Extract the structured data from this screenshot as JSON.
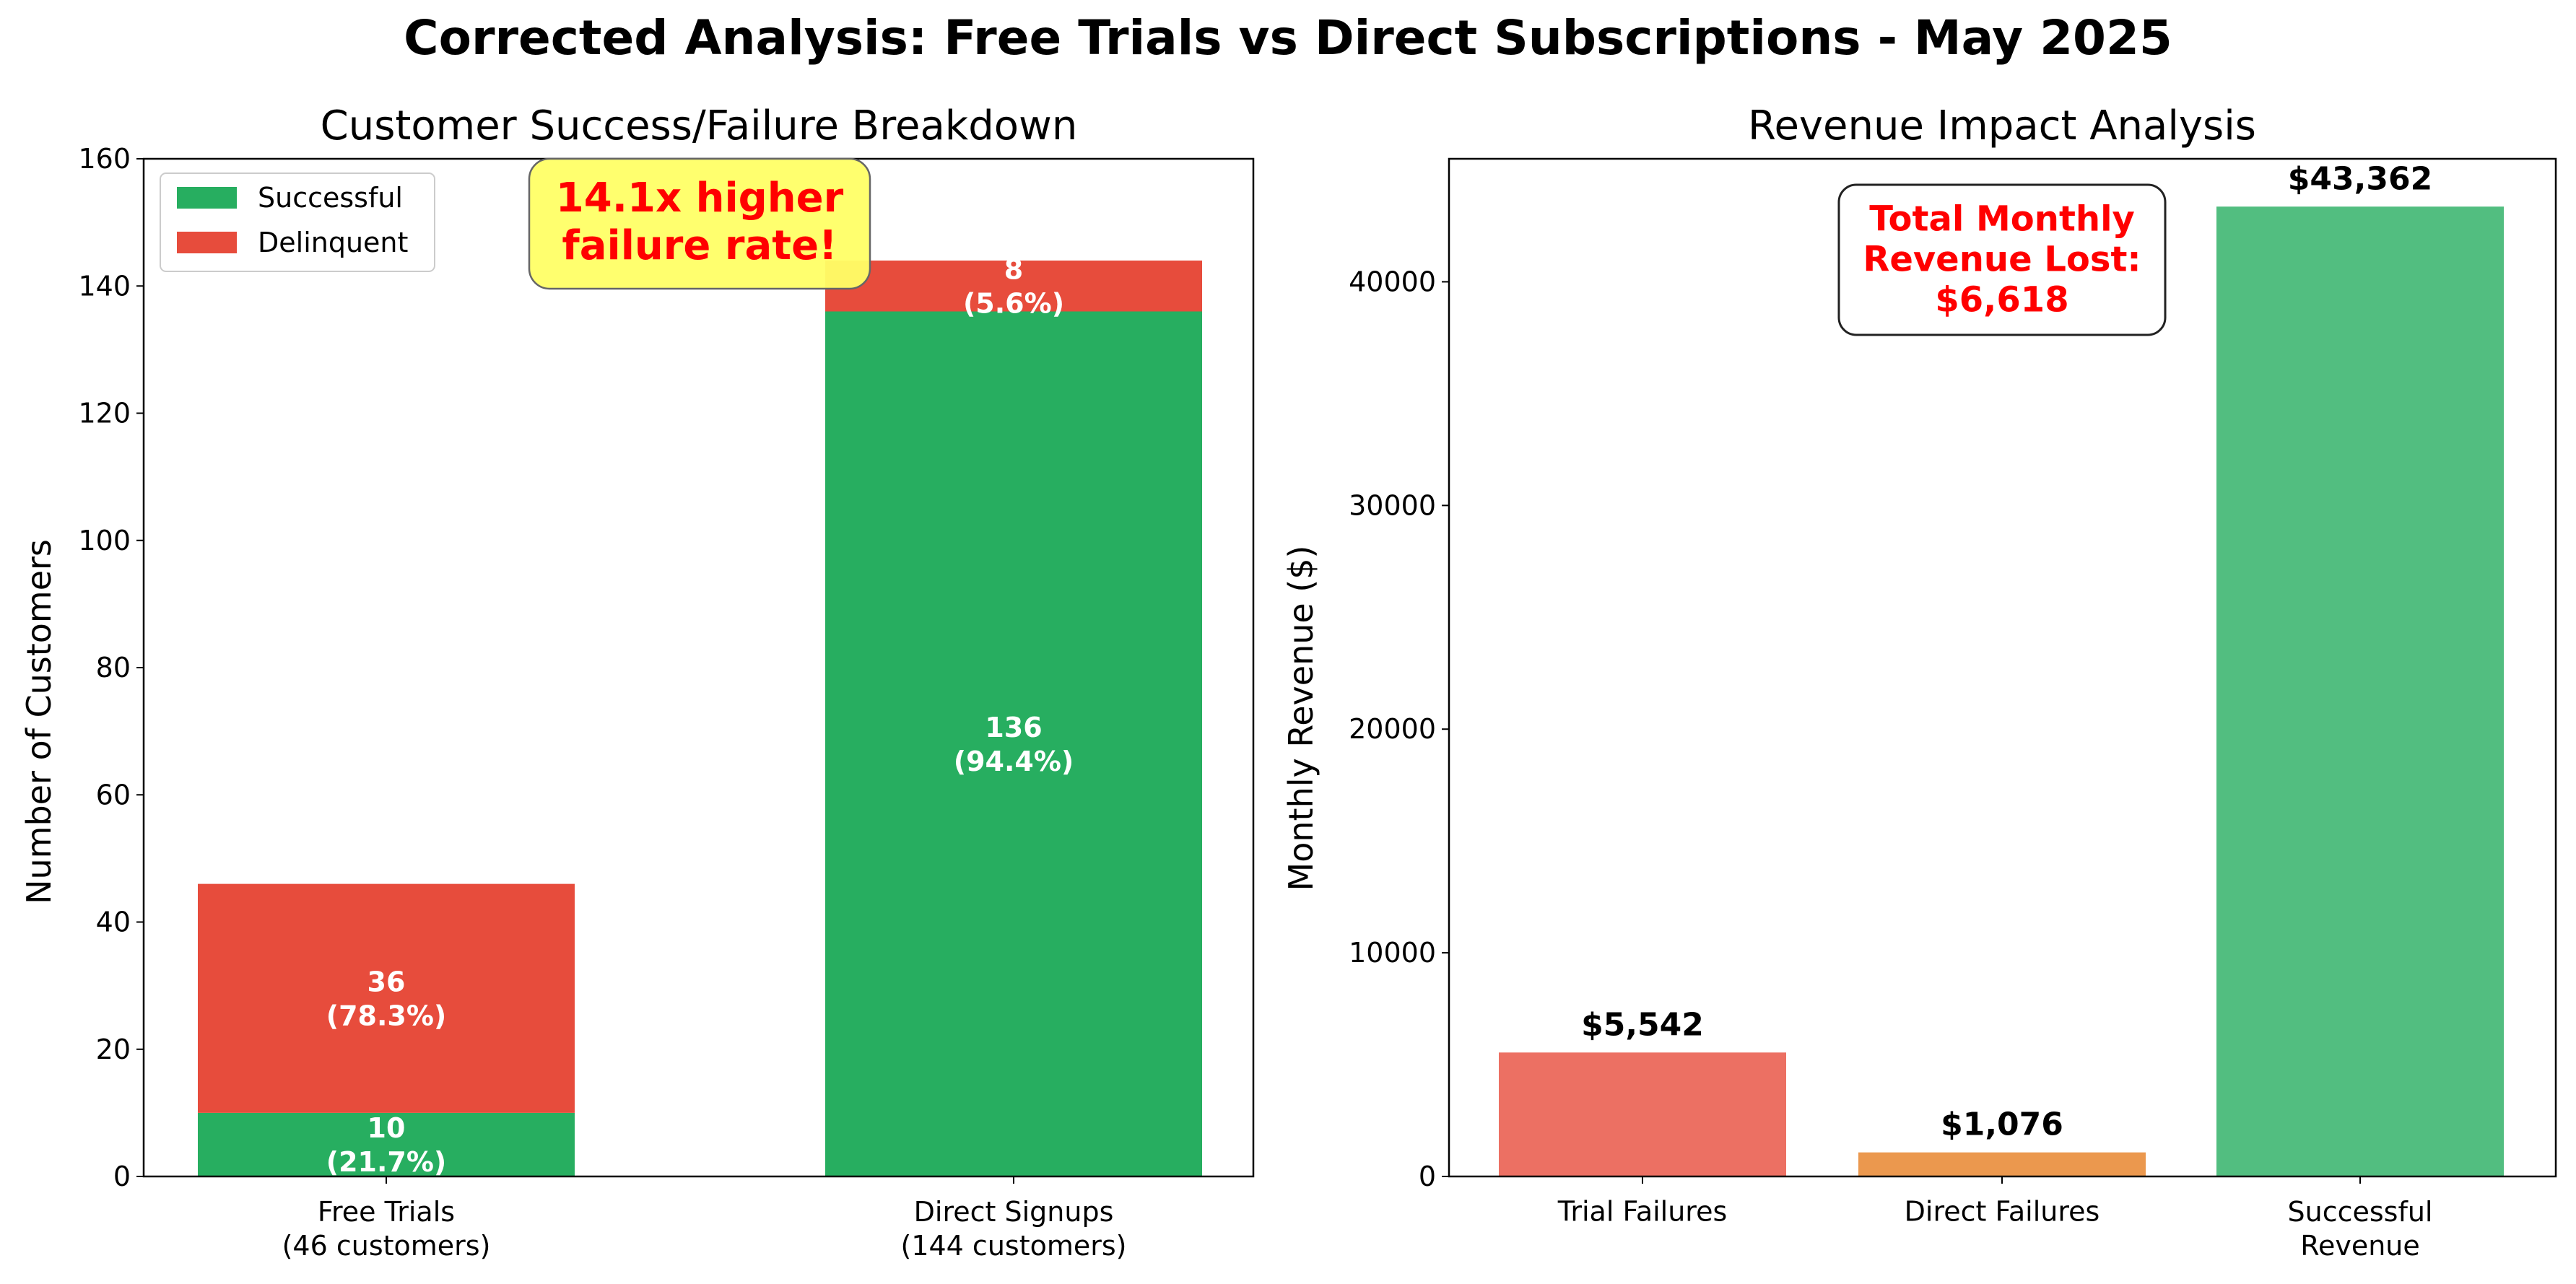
{
  "figure": {
    "suptitle": "Corrected Analysis: Free Trials vs Direct Subscriptions - May 2025"
  },
  "colors": {
    "success": "#27ae60",
    "delinquent": "#e74c3c",
    "trial_failures": "#e74c3c",
    "direct_failures": "#e67e22",
    "successful_revenue": "#27ae60",
    "alert_text": "#ff0000",
    "highlight_box": "#ffff66"
  },
  "chart_data": [
    {
      "type": "bar",
      "stacked": true,
      "title": "Customer Success/Failure Breakdown",
      "xlabel": "",
      "ylabel": "Number of Customers",
      "ylim": [
        0,
        160
      ],
      "yticks": [
        0,
        20,
        40,
        60,
        80,
        100,
        120,
        140,
        160
      ],
      "categories": [
        "Free Trials\n(46 customers)",
        "Direct Signups\n(144 customers)"
      ],
      "series": [
        {
          "name": "Successful",
          "values": [
            10,
            136
          ],
          "labels": [
            "10\n(21.7%)",
            "136\n(94.4%)"
          ]
        },
        {
          "name": "Delinquent",
          "values": [
            36,
            8
          ],
          "labels": [
            "36\n(78.3%)",
            "8\n(5.6%)"
          ]
        }
      ],
      "legend": "top-left",
      "annotation": "14.1x higher\nfailure rate!",
      "grid": false
    },
    {
      "type": "bar",
      "title": "Revenue Impact Analysis",
      "xlabel": "",
      "ylabel": "Monthly Revenue ($)",
      "ylim": [
        0,
        45500
      ],
      "yticks": [
        0,
        10000,
        20000,
        30000,
        40000
      ],
      "categories": [
        "Trial Failures",
        "Direct Failures",
        "Successful\nRevenue"
      ],
      "values": [
        5542,
        1076,
        43362
      ],
      "labels": [
        "$5,542",
        "$1,076",
        "$43,362"
      ],
      "annotation": "Total Monthly\nRevenue Lost:\n$6,618",
      "grid": false
    }
  ]
}
